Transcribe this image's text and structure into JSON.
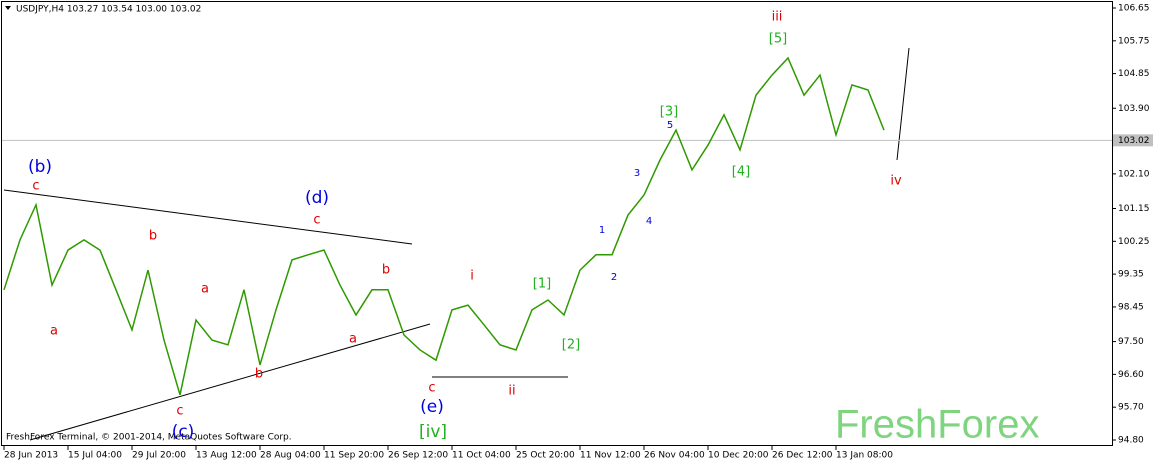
{
  "chart_data": {
    "type": "line",
    "title": "USDJPY,H4  103.27 103.54 103.00 103.02",
    "copyright": "FreshForex Terminal, © 2001-2014, MetaQuotes Software Corp.",
    "watermark": "FreshForex",
    "categories": [
      "28 Jun 2013",
      null,
      null,
      null,
      "15 Jul 04:00",
      null,
      null,
      null,
      "29 Jul 20:00",
      null,
      null,
      null,
      "13 Aug 12:00",
      null,
      null,
      null,
      "28 Aug 04:00",
      null,
      null,
      null,
      "11 Sep 20:00",
      null,
      null,
      null,
      "26 Sep 12:00",
      null,
      null,
      null,
      "11 Oct 04:00",
      null,
      null,
      null,
      "25 Oct 20:00",
      null,
      null,
      null,
      "11 Nov 12:00",
      null,
      null,
      null,
      "26 Nov 04:00",
      null,
      null,
      null,
      "10 Dec 20:00",
      null,
      null,
      null,
      "26 Dec 12:00",
      null,
      null,
      null,
      "13 Jan 08:00",
      null,
      null,
      null
    ],
    "series": [
      {
        "name": "USDJPY",
        "color": "#2e9a00",
        "values": [
          98.92,
          100.29,
          101.25,
          99.05,
          100.01,
          100.29,
          100.01,
          98.92,
          97.82,
          99.46,
          97.54,
          96.04,
          98.09,
          97.54,
          97.41,
          98.92,
          96.86,
          98.37,
          99.74,
          99.88,
          100.01,
          99.05,
          98.23,
          98.92,
          98.92,
          97.68,
          97.27,
          96.99,
          98.37,
          98.5,
          97.96,
          97.41,
          97.27,
          98.37,
          98.64,
          98.23,
          99.46,
          99.88,
          99.88,
          100.97,
          101.52,
          102.48,
          103.3,
          102.21,
          102.89,
          103.72,
          102.76,
          104.26,
          104.81,
          105.28,
          104.26,
          104.81,
          103.17,
          104.54,
          104.4,
          103.3
        ]
      }
    ],
    "current_price": 103.02,
    "ylim": [
      94.8,
      106.65
    ],
    "yticks": [
      106.65,
      105.75,
      104.85,
      {
        "value": 103.9,
        "label": "103.90"
      },
      {
        "value": 102.1,
        "label": "102.10"
      },
      101.15,
      100.25,
      99.35,
      98.45,
      {
        "value": 97.5,
        "label": "97.50"
      },
      {
        "value": 96.6,
        "label": "96.60"
      },
      {
        "value": 95.7,
        "label": "95.70"
      },
      {
        "value": 94.8,
        "label": "94.80"
      }
    ],
    "annotations": [
      "(b)",
      "c",
      "a",
      "b",
      "a",
      "c",
      "(c)",
      "b",
      "(d)",
      "c",
      "a",
      "b",
      "c",
      "(e)",
      "[iv]",
      "i",
      "ii",
      "[1]",
      "[2]",
      "1",
      "2",
      "3",
      "4",
      "5",
      "[3]",
      "[4]",
      "[5]",
      "iii",
      "iv"
    ]
  }
}
